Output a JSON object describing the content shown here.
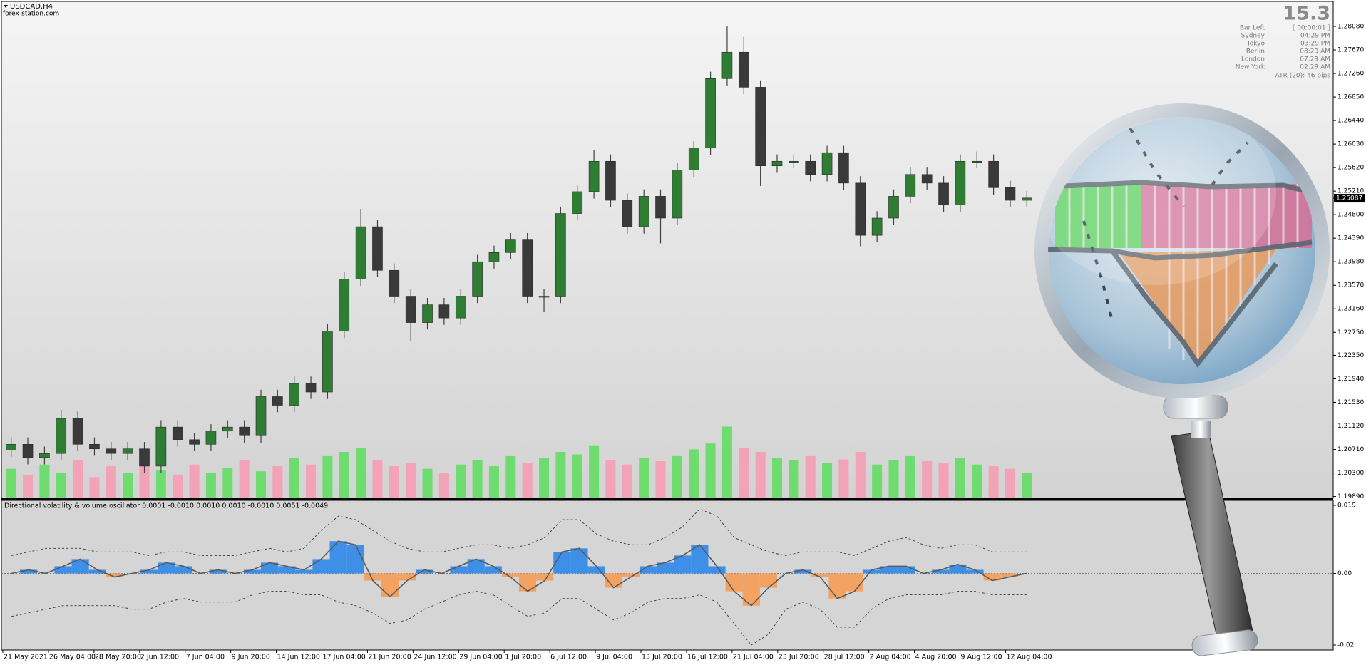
{
  "chart_data": {
    "type": "candlestick",
    "symbol": "USDCAD,H4",
    "source": "forex-station.com",
    "ylim": [
      1.1986,
      1.2849
    ],
    "yticks": [
      {
        "value": 1.1989,
        "label": "1.19890"
      },
      {
        "value": 1.203,
        "label": "1.20300"
      },
      {
        "value": 1.2071,
        "label": "1.20710"
      },
      {
        "value": 1.2112,
        "label": "1.21120"
      },
      {
        "value": 1.2153,
        "label": "1.21530"
      },
      {
        "value": 1.2194,
        "label": "1.21940"
      },
      {
        "value": 1.2235,
        "label": "1.22350"
      },
      {
        "value": 1.2275,
        "label": "1.22750"
      },
      {
        "value": 1.2316,
        "label": "1.23160"
      },
      {
        "value": 1.2357,
        "label": "1.23570"
      },
      {
        "value": 1.2398,
        "label": "1.23980"
      },
      {
        "value": 1.2439,
        "label": "1.24390"
      },
      {
        "value": 1.248,
        "label": "1.24800"
      },
      {
        "value": 1.2521,
        "label": "1.25210"
      },
      {
        "value": 1.2562,
        "label": "1.25620"
      },
      {
        "value": 1.2603,
        "label": "1.26030"
      },
      {
        "value": 1.2644,
        "label": "1.26440"
      },
      {
        "value": 1.2685,
        "label": "1.26850"
      },
      {
        "value": 1.2726,
        "label": "1.27260"
      },
      {
        "value": 1.2767,
        "label": "1.27670"
      },
      {
        "value": 1.2808,
        "label": "1.28080"
      }
    ],
    "current_price": {
      "value": 1.25087,
      "label": "1.25087"
    },
    "xlabels": [
      "21 May 2021",
      "26 May 04:00",
      "28 May 20:00",
      "2 Jun 12:00",
      "7 Jun 04:00",
      "9 Jun 20:00",
      "14 Jun 12:00",
      "17 Jun 04:00",
      "21 Jun 20:00",
      "24 Jun 12:00",
      "29 Jun 04:00",
      "1 Jul 20:00",
      "6 Jul 12:00",
      "9 Jul 04:00",
      "13 Jul 20:00",
      "16 Jul 12:00",
      "21 Jul 04:00",
      "23 Jul 20:00",
      "28 Jul 12:00",
      "2 Aug 04:00",
      "4 Aug 20:00",
      "9 Aug 12:00",
      "12 Aug 04:00"
    ],
    "open": [
      1.207,
      1.208,
      1.2057,
      1.2064,
      1.2125,
      1.208,
      1.2072,
      1.2064,
      1.2072,
      1.2042,
      1.211,
      1.2088,
      1.208,
      1.2103,
      1.211,
      1.2095,
      1.2163,
      1.2148,
      1.2186,
      1.2171,
      1.2277,
      1.2368,
      1.2459,
      1.2383,
      1.2338,
      1.2292,
      1.2323,
      1.23,
      1.2338,
      1.2398,
      1.2414,
      1.2436,
      1.2338,
      1.2338,
      1.2482,
      1.252,
      1.2573,
      1.2505,
      1.2459,
      1.2512,
      1.2474,
      1.2558,
      1.2596,
      1.2717,
      1.2763,
      1.2702,
      1.2565,
      1.2573,
      1.2573,
      1.255,
      1.2588,
      1.2535,
      1.2444,
      1.2474,
      1.2512,
      1.255,
      1.2535,
      1.2497,
      1.2573,
      1.2573,
      1.2527,
      1.2505
    ],
    "high": [
      1.2092,
      1.2092,
      1.2076,
      1.214,
      1.2137,
      1.2092,
      1.2084,
      1.2084,
      1.2084,
      1.2122,
      1.2122,
      1.21,
      1.2115,
      1.2122,
      1.2122,
      1.2175,
      1.2175,
      1.2198,
      1.2198,
      1.2289,
      1.238,
      1.249,
      1.2471,
      1.2395,
      1.235,
      1.2335,
      1.2335,
      1.235,
      1.241,
      1.2426,
      1.2448,
      1.2448,
      1.235,
      1.2494,
      1.2532,
      1.2592,
      1.2585,
      1.2517,
      1.2524,
      1.2524,
      1.257,
      1.2608,
      1.2729,
      1.2808,
      1.279,
      1.2714,
      1.2585,
      1.2585,
      1.2585,
      1.26,
      1.26,
      1.2547,
      1.2486,
      1.2524,
      1.2562,
      1.2562,
      1.2547,
      1.2585,
      1.259,
      1.2585,
      1.2539,
      1.2521
    ],
    "low": [
      1.2058,
      1.2045,
      1.2045,
      1.2052,
      1.2068,
      1.206,
      1.2052,
      1.2052,
      1.203,
      1.203,
      1.2076,
      1.2068,
      1.2068,
      1.2091,
      1.2083,
      1.2083,
      1.2136,
      1.2136,
      1.2159,
      1.2159,
      1.2265,
      1.2356,
      1.2371,
      1.2326,
      1.226,
      1.228,
      1.2288,
      1.2288,
      1.2326,
      1.2386,
      1.2402,
      1.2326,
      1.231,
      1.2326,
      1.247,
      1.2508,
      1.2493,
      1.2447,
      1.2447,
      1.243,
      1.2462,
      1.2546,
      1.2584,
      1.2705,
      1.269,
      1.253,
      1.2553,
      1.2561,
      1.2538,
      1.2538,
      1.2523,
      1.2425,
      1.2432,
      1.2462,
      1.25,
      1.2523,
      1.2485,
      1.2485,
      1.2561,
      1.2515,
      1.2493,
      1.2493
    ],
    "close": [
      1.208,
      1.2057,
      1.2064,
      1.2125,
      1.208,
      1.2072,
      1.2064,
      1.2072,
      1.2042,
      1.211,
      1.2088,
      1.208,
      1.2103,
      1.211,
      1.2095,
      1.2163,
      1.2148,
      1.2186,
      1.2171,
      1.2277,
      1.2368,
      1.2459,
      1.2383,
      1.2338,
      1.2292,
      1.2323,
      1.23,
      1.2338,
      1.2398,
      1.2414,
      1.2436,
      1.2338,
      1.2338,
      1.2482,
      1.252,
      1.2573,
      1.2505,
      1.2459,
      1.2512,
      1.2474,
      1.2558,
      1.2596,
      1.2717,
      1.2763,
      1.2702,
      1.2565,
      1.2573,
      1.2573,
      1.255,
      1.2588,
      1.2535,
      1.2444,
      1.2474,
      1.2512,
      1.255,
      1.2535,
      1.2497,
      1.2573,
      1.2573,
      1.2527,
      1.2505,
      1.2509
    ],
    "volume": [
      35,
      28,
      40,
      30,
      45,
      25,
      38,
      30,
      42,
      33,
      28,
      40,
      30,
      36,
      45,
      32,
      38,
      48,
      40,
      50,
      55,
      60,
      45,
      38,
      42,
      35,
      30,
      40,
      45,
      38,
      50,
      42,
      48,
      55,
      52,
      62,
      45,
      40,
      48,
      44,
      50,
      58,
      65,
      85,
      60,
      55,
      48,
      45,
      50,
      42,
      46,
      55,
      40,
      45,
      50,
      44,
      42,
      48,
      40,
      38,
      35,
      30
    ],
    "volume_lim": [
      0,
      110
    ],
    "up_color": "#2f7d32",
    "down_color": "#3a3a3a",
    "wick_color": "#404040",
    "volume_up_color": "#6fdc6f",
    "volume_down_color": "#f2a3b8",
    "info": {
      "big": "15.3",
      "rows": [
        {
          "label": "Bar Left",
          "value": "[ 00:00:01 ]"
        },
        {
          "label": "Sydney",
          "value": "04:29 PM"
        },
        {
          "label": "Tokyo",
          "value": "03:29 PM"
        },
        {
          "label": "Berlin",
          "value": "08:29 AM"
        },
        {
          "label": "London",
          "value": "07:29 AM"
        },
        {
          "label": "New York",
          "value": "02:29 AM"
        }
      ],
      "atr": "ATR (20): 46 pips"
    },
    "oscillator": {
      "title": "Directional volatility & volume oscillator 0.0001 -0.0010 0.0010 0.0010 -0.0010 0.0051 -0.0049",
      "ylim": [
        -0.021,
        0.0202
      ],
      "yticks": [
        0.019,
        {
          "value": 0,
          "label": "0.00"
        },
        -0.02
      ],
      "levels": [
        0
      ],
      "values": [
        0,
        0.001,
        0,
        0.002,
        0.004,
        0.001,
        -0.001,
        0,
        0.001,
        0.003,
        0.002,
        0,
        0.001,
        0,
        0.001,
        0.003,
        0.002,
        0.001,
        0.004,
        0.009,
        0.008,
        -0.002,
        -0.0065,
        -0.002,
        0.001,
        0,
        0.002,
        0.004,
        0.002,
        -0.001,
        -0.005,
        -0.002,
        0.006,
        0.007,
        0.002,
        -0.004,
        -0.001,
        0.002,
        0.003,
        0.005,
        0.008,
        0.002,
        -0.005,
        -0.009,
        -0.004,
        0,
        0.001,
        -0.001,
        -0.007,
        -0.005,
        0.001,
        0.002,
        0.002,
        0,
        0.001,
        0.0025,
        0.001,
        -0.002,
        -0.001,
        0
      ],
      "upper": [
        0.005,
        0.006,
        0.007,
        0.007,
        0.007,
        0.006,
        0.006,
        0.006,
        0.005,
        0.006,
        0.006,
        0.005,
        0.005,
        0.005,
        0.006,
        0.007,
        0.006,
        0.007,
        0.012,
        0.016,
        0.015,
        0.012,
        0.009,
        0.007,
        0.006,
        0.006,
        0.007,
        0.008,
        0.008,
        0.007,
        0.008,
        0.01,
        0.015,
        0.015,
        0.011,
        0.009,
        0.008,
        0.008,
        0.01,
        0.013,
        0.018,
        0.016,
        0.01,
        0.008,
        0.006,
        0.005,
        0.006,
        0.006,
        0.006,
        0.005,
        0.007,
        0.009,
        0.01,
        0.008,
        0.007,
        0.008,
        0.008,
        0.006,
        0.006,
        0.006
      ],
      "lower": [
        -0.012,
        -0.011,
        -0.01,
        -0.009,
        -0.009,
        -0.009,
        -0.009,
        -0.01,
        -0.01,
        -0.008,
        -0.007,
        -0.008,
        -0.008,
        -0.008,
        -0.006,
        -0.005,
        -0.005,
        -0.006,
        -0.006,
        -0.008,
        -0.009,
        -0.011,
        -0.014,
        -0.013,
        -0.01,
        -0.008,
        -0.006,
        -0.005,
        -0.006,
        -0.009,
        -0.012,
        -0.011,
        -0.007,
        -0.007,
        -0.01,
        -0.013,
        -0.011,
        -0.008,
        -0.007,
        -0.007,
        -0.006,
        -0.008,
        -0.014,
        -0.02,
        -0.017,
        -0.01,
        -0.008,
        -0.01,
        -0.015,
        -0.015,
        -0.01,
        -0.007,
        -0.006,
        -0.006,
        -0.006,
        -0.005,
        -0.005,
        -0.006,
        -0.006,
        -0.006
      ],
      "positive_color": "#3d8fe8",
      "negative_color": "#f3a261",
      "line_color": "#5a5a5a",
      "band_color": "#333333"
    }
  }
}
